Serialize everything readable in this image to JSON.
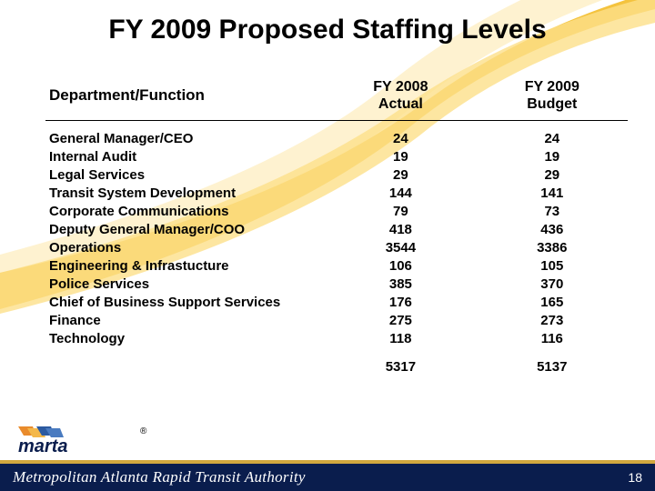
{
  "title": "FY 2009 Proposed Staffing Levels",
  "table": {
    "columns": [
      "Department/Function",
      "FY 2008\nActual",
      "FY 2009\nBudget"
    ],
    "rows": [
      [
        "General Manager/CEO",
        "24",
        "24"
      ],
      [
        "Internal Audit",
        "19",
        "19"
      ],
      [
        "Legal Services",
        "29",
        "29"
      ],
      [
        "Transit System Development",
        "144",
        "141"
      ],
      [
        "Corporate Communications",
        "79",
        "73"
      ],
      [
        "Deputy General Manager/COO",
        "418",
        "436"
      ],
      [
        "Operations",
        "3544",
        "3386"
      ],
      [
        "Engineering & Infrastucture",
        "106",
        "105"
      ],
      [
        "Police Services",
        "385",
        "370"
      ],
      [
        "Chief of Business Support Services",
        "176",
        "165"
      ],
      [
        "Finance",
        "275",
        "273"
      ],
      [
        "Technology",
        "118",
        "116"
      ]
    ],
    "totals": [
      "",
      "5317",
      "5137"
    ]
  },
  "footer": {
    "org": "Metropolitan Atlanta Rapid Transit Authority",
    "page": "18"
  },
  "logo": {
    "text": "marta",
    "registered": "®"
  },
  "colors": {
    "swoosh": "#f4c33e",
    "swoosh_light": "#fde9b0",
    "navy": "#0a1d4d",
    "gold_bar": "#d2a83e",
    "logo_orange": "#e98b2c",
    "logo_blue": "#2c5aa0"
  }
}
